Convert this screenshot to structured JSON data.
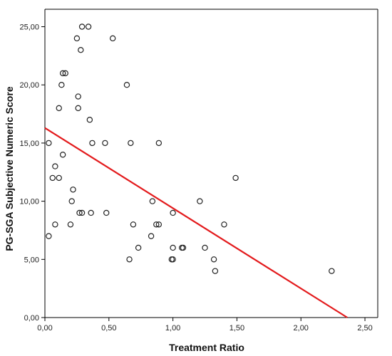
{
  "chart_data": {
    "type": "scatter",
    "title": "",
    "xlabel": "Treatment Ratio",
    "ylabel": "PG-SGA Subjective Numeric Score",
    "xlim": [
      0,
      2.6
    ],
    "ylim": [
      0,
      26.5
    ],
    "x_ticks": [
      "0,00",
      "0,50",
      "1,00",
      "1,50",
      "2,00",
      "2,50"
    ],
    "y_ticks": [
      "0,00",
      "5,00",
      "10,00",
      "15,00",
      "20,00",
      "25,00"
    ],
    "grid": false,
    "marker": "open-circle",
    "point_color": "#222222",
    "fit_line": {
      "color": "#e31a1c",
      "intercept": 16.3,
      "slope": -6.9
    },
    "points": [
      {
        "x": 0.29,
        "y": 25
      },
      {
        "x": 0.34,
        "y": 25
      },
      {
        "x": 0.25,
        "y": 24
      },
      {
        "x": 0.53,
        "y": 24
      },
      {
        "x": 0.28,
        "y": 23
      },
      {
        "x": 0.14,
        "y": 21
      },
      {
        "x": 0.16,
        "y": 21
      },
      {
        "x": 0.13,
        "y": 20
      },
      {
        "x": 0.64,
        "y": 20
      },
      {
        "x": 0.26,
        "y": 19
      },
      {
        "x": 0.11,
        "y": 18
      },
      {
        "x": 0.26,
        "y": 18
      },
      {
        "x": 0.35,
        "y": 17
      },
      {
        "x": 0.03,
        "y": 15
      },
      {
        "x": 0.37,
        "y": 15
      },
      {
        "x": 0.47,
        "y": 15
      },
      {
        "x": 0.67,
        "y": 15
      },
      {
        "x": 0.89,
        "y": 15
      },
      {
        "x": 0.14,
        "y": 14
      },
      {
        "x": 0.08,
        "y": 13
      },
      {
        "x": 0.06,
        "y": 12
      },
      {
        "x": 0.11,
        "y": 12
      },
      {
        "x": 1.49,
        "y": 12
      },
      {
        "x": 0.22,
        "y": 11
      },
      {
        "x": 0.21,
        "y": 10
      },
      {
        "x": 0.84,
        "y": 10
      },
      {
        "x": 1.21,
        "y": 10
      },
      {
        "x": 0.27,
        "y": 9
      },
      {
        "x": 0.29,
        "y": 9
      },
      {
        "x": 0.36,
        "y": 9
      },
      {
        "x": 0.48,
        "y": 9
      },
      {
        "x": 1.0,
        "y": 9
      },
      {
        "x": 0.08,
        "y": 8
      },
      {
        "x": 0.2,
        "y": 8
      },
      {
        "x": 0.69,
        "y": 8
      },
      {
        "x": 0.87,
        "y": 8
      },
      {
        "x": 0.89,
        "y": 8
      },
      {
        "x": 1.4,
        "y": 8
      },
      {
        "x": 0.03,
        "y": 7
      },
      {
        "x": 0.83,
        "y": 7
      },
      {
        "x": 0.73,
        "y": 6
      },
      {
        "x": 1.0,
        "y": 6
      },
      {
        "x": 1.07,
        "y": 6
      },
      {
        "x": 1.08,
        "y": 6
      },
      {
        "x": 1.25,
        "y": 6
      },
      {
        "x": 0.66,
        "y": 5
      },
      {
        "x": 0.99,
        "y": 5
      },
      {
        "x": 1.0,
        "y": 5
      },
      {
        "x": 1.32,
        "y": 5
      },
      {
        "x": 1.33,
        "y": 4
      },
      {
        "x": 2.24,
        "y": 4
      }
    ]
  }
}
